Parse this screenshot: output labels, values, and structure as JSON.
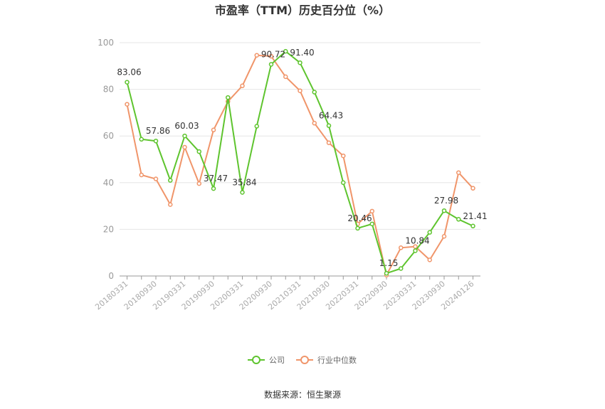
{
  "chart_data": {
    "type": "line",
    "title": "市盈率（TTM）历史百分位（%）",
    "source": "数据来源：恒生聚源",
    "ylim": [
      0,
      100
    ],
    "yticks": [
      0,
      20,
      40,
      60,
      80,
      100
    ],
    "grid": true,
    "legend_position": "bottom",
    "x": [
      "20180331",
      "20180630",
      "20180930",
      "20181231",
      "20190331",
      "20190630",
      "20190930",
      "20191231",
      "20200331",
      "20200630",
      "20200930",
      "20201231",
      "20210331",
      "20210630",
      "20210930",
      "20211231",
      "20220331",
      "20220630",
      "20220930",
      "20221231",
      "20230331",
      "20230630",
      "20230930",
      "20231231",
      "20240126"
    ],
    "xtick_labels": [
      "20180331",
      "20180930",
      "20190331",
      "20190930",
      "20200331",
      "20200930",
      "20210331",
      "20210930",
      "20220331",
      "20220930",
      "20230331",
      "20230930",
      "20240126"
    ],
    "series": [
      {
        "name": "公司",
        "color": "#5ec42e",
        "values": [
          83.06,
          58.6,
          57.86,
          41.0,
          60.03,
          53.3,
          37.47,
          76.5,
          35.84,
          64.2,
          90.72,
          96.3,
          91.4,
          78.8,
          64.43,
          40.0,
          20.46,
          22.3,
          1.15,
          3.2,
          10.84,
          18.7,
          27.98,
          24.3,
          21.41
        ]
      },
      {
        "name": "行业中位数",
        "color": "#f0956a",
        "values": [
          73.6,
          43.3,
          41.6,
          30.6,
          55.2,
          39.6,
          62.6,
          74.8,
          81.5,
          94.6,
          94.2,
          85.4,
          79.4,
          65.5,
          57.1,
          51.5,
          22.3,
          27.8,
          0.4,
          12.1,
          12.6,
          6.9,
          17.0,
          44.3,
          37.6
        ]
      }
    ],
    "data_labels": [
      {
        "series": 0,
        "index": 0,
        "text": "83.06"
      },
      {
        "series": 0,
        "index": 2,
        "text": "57.86"
      },
      {
        "series": 0,
        "index": 4,
        "text": "60.03"
      },
      {
        "series": 0,
        "index": 6,
        "text": "37.47"
      },
      {
        "series": 0,
        "index": 8,
        "text": "35.84"
      },
      {
        "series": 0,
        "index": 10,
        "text": "90.72"
      },
      {
        "series": 0,
        "index": 12,
        "text": "91.40"
      },
      {
        "series": 0,
        "index": 14,
        "text": "64.43"
      },
      {
        "series": 0,
        "index": 16,
        "text": "20.46"
      },
      {
        "series": 0,
        "index": 18,
        "text": "1.15"
      },
      {
        "series": 0,
        "index": 20,
        "text": "10.84"
      },
      {
        "series": 0,
        "index": 22,
        "text": "27.98"
      },
      {
        "series": 0,
        "index": 24,
        "text": "21.41"
      }
    ]
  }
}
